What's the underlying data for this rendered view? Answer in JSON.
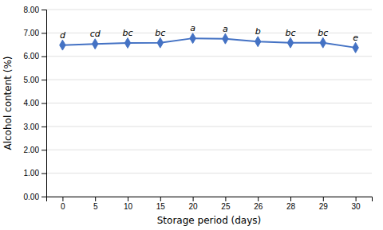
{
  "chart_data": {
    "type": "line",
    "categories": [
      "0",
      "5",
      "10",
      "15",
      "20",
      "25",
      "26",
      "28",
      "29",
      "30"
    ],
    "values": [
      6.48,
      6.53,
      6.57,
      6.58,
      6.77,
      6.75,
      6.63,
      6.58,
      6.58,
      6.37
    ],
    "annotations": [
      "d",
      "cd",
      "bc",
      "bc",
      "a",
      "a",
      "b",
      "bc",
      "bc",
      "e"
    ],
    "xlabel": "Storage period (days)",
    "ylabel": "Alcohol content (%)",
    "ylim": [
      0.0,
      8.0
    ],
    "yticks": [
      {
        "value": 0.0,
        "label": "0.00"
      },
      {
        "value": 1.0,
        "label": "1.00"
      },
      {
        "value": 2.0,
        "label": "2.00"
      },
      {
        "value": 3.0,
        "label": "3.00"
      },
      {
        "value": 4.0,
        "label": "4.00"
      },
      {
        "value": 5.0,
        "label": "5.00"
      },
      {
        "value": 6.0,
        "label": "6.00"
      },
      {
        "value": 7.0,
        "label": "7.00"
      },
      {
        "value": 8.0,
        "label": "8.00"
      }
    ],
    "color": "#4472C4",
    "marker": "diamond",
    "grid": true
  }
}
